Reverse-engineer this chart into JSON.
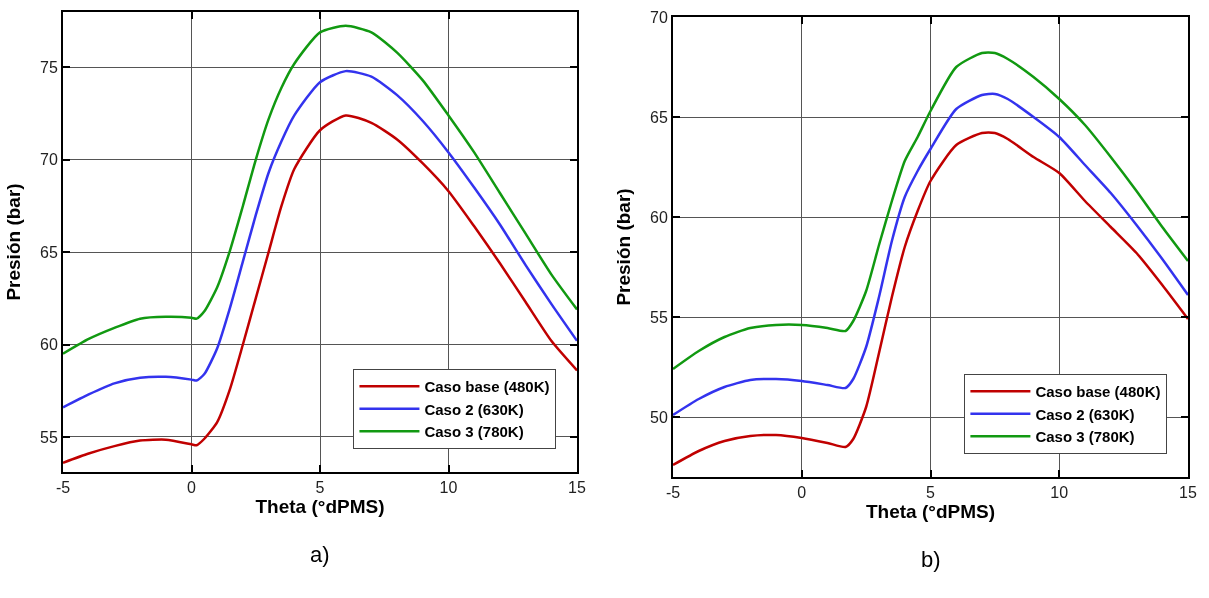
{
  "chart_data": [
    {
      "type": "line",
      "xlabel": "Theta (°dPMS)",
      "ylabel": "Presión (bar)",
      "xlim": [
        -5,
        15
      ],
      "xticks": [
        -5,
        0,
        5,
        10,
        15
      ],
      "ylim": [
        53.1,
        78
      ],
      "yticks": [
        55,
        60,
        65,
        70,
        75
      ],
      "grid": true,
      "legend": "bottom right",
      "line_style": "solid",
      "marker": "none",
      "annotations": [
        "a)"
      ],
      "x": [
        -5,
        -4,
        -3,
        -2,
        -1,
        0,
        0.2,
        0.5,
        1,
        1.5,
        2,
        2.5,
        3,
        3.5,
        4,
        5,
        6,
        7,
        8,
        9,
        10,
        11,
        12,
        13,
        14,
        15
      ],
      "series": [
        {
          "name": "Caso base (480K)",
          "color": "#c00000",
          "values": [
            53.6,
            54.1,
            54.5,
            54.8,
            54.85,
            54.6,
            54.55,
            54.9,
            55.8,
            57.6,
            60,
            62.5,
            65,
            67.5,
            69.5,
            71.6,
            72.4,
            72,
            71.1,
            69.8,
            68.3,
            66.4,
            64.4,
            62.3,
            60.2,
            58.6
          ]
        },
        {
          "name": "Caso 2 (630K)",
          "color": "#3333ee",
          "values": [
            56.6,
            57.3,
            57.9,
            58.2,
            58.25,
            58.1,
            58.05,
            58.4,
            59.8,
            62,
            64.5,
            67,
            69.3,
            71,
            72.4,
            74.2,
            74.8,
            74.5,
            73.5,
            72.1,
            70.4,
            68.5,
            66.5,
            64.3,
            62.2,
            60.2
          ]
        },
        {
          "name": "Caso 3 (780K)",
          "color": "#119911",
          "values": [
            59.5,
            60.3,
            60.9,
            61.4,
            61.5,
            61.45,
            61.4,
            61.8,
            63.1,
            65.1,
            67.5,
            70,
            72.2,
            73.9,
            75.2,
            76.9,
            77.25,
            76.9,
            75.8,
            74.3,
            72.4,
            70.4,
            68.2,
            66,
            63.8,
            61.9
          ]
        }
      ]
    },
    {
      "type": "line",
      "xlabel": "Theta (°dPMS)",
      "ylabel": "Presión (bar)",
      "xlim": [
        -5,
        15
      ],
      "xticks": [
        -5,
        0,
        5,
        10,
        15
      ],
      "ylim": [
        47,
        70
      ],
      "yticks": [
        50,
        55,
        60,
        65,
        70
      ],
      "grid": true,
      "legend": "bottom right",
      "line_style": "solid",
      "marker": "none",
      "annotations": [
        "b)"
      ],
      "x": [
        -5,
        -4,
        -3,
        -2,
        -1,
        0,
        1,
        1.7,
        2,
        2.5,
        3,
        3.5,
        4,
        4.5,
        5,
        6,
        7,
        7.5,
        8,
        9,
        10,
        11,
        12,
        13,
        14,
        15
      ],
      "series": [
        {
          "name": "Caso base (480K)",
          "color": "#c00000",
          "values": [
            47.6,
            48.3,
            48.8,
            49.05,
            49.1,
            48.95,
            48.7,
            48.5,
            48.9,
            50.5,
            53.2,
            56,
            58.5,
            60.3,
            61.8,
            63.6,
            64.2,
            64.2,
            63.9,
            63,
            62.2,
            60.8,
            59.5,
            58.2,
            56.6,
            54.9
          ]
        },
        {
          "name": "Caso 2 (630K)",
          "color": "#3333ee",
          "values": [
            50.1,
            50.9,
            51.5,
            51.85,
            51.9,
            51.8,
            51.6,
            51.45,
            51.9,
            53.5,
            56,
            58.8,
            61,
            62.3,
            63.4,
            65.4,
            66.1,
            66.15,
            65.9,
            65,
            64,
            62.6,
            61.2,
            59.6,
            57.9,
            56.1
          ]
        },
        {
          "name": "Caso 3 (780K)",
          "color": "#119911",
          "values": [
            52.4,
            53.3,
            54,
            54.45,
            54.6,
            54.6,
            54.45,
            54.3,
            54.8,
            56.3,
            58.6,
            60.8,
            62.8,
            64,
            65.3,
            67.5,
            68.2,
            68.2,
            67.9,
            67,
            65.9,
            64.6,
            63,
            61.3,
            59.5,
            57.8
          ]
        }
      ]
    }
  ]
}
